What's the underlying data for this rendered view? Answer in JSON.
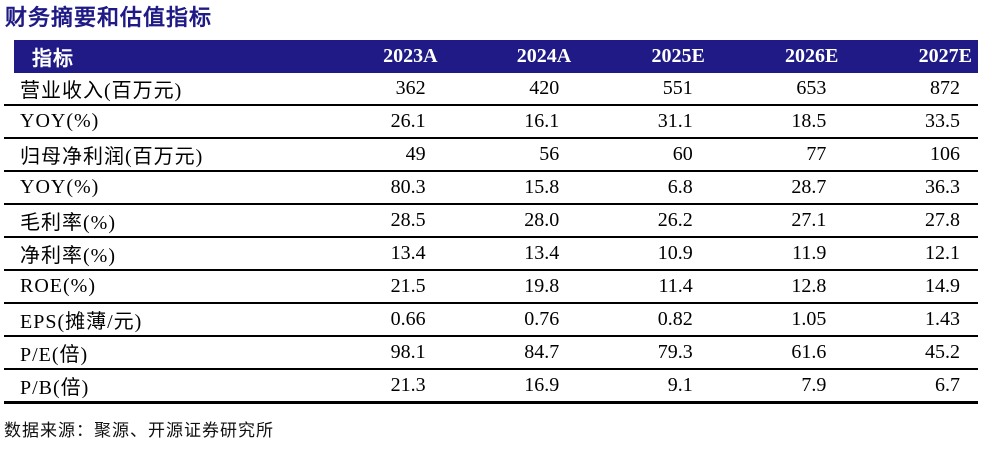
{
  "title": "财务摘要和估值指标",
  "colors": {
    "navy": "#1f1a85",
    "line": "#000000",
    "header_text": "#ffffff",
    "body_text": "#000000"
  },
  "table": {
    "header": {
      "metric_label": "指标",
      "years": [
        "2023A",
        "2024A",
        "2025E",
        "2026E",
        "2027E"
      ]
    },
    "rows": [
      {
        "label": "营业收入(百万元)",
        "values": [
          "362",
          "420",
          "551",
          "653",
          "872"
        ]
      },
      {
        "label": "YOY(%)",
        "values": [
          "26.1",
          "16.1",
          "31.1",
          "18.5",
          "33.5"
        ]
      },
      {
        "label": "归母净利润(百万元)",
        "values": [
          "49",
          "56",
          "60",
          "77",
          "106"
        ]
      },
      {
        "label": "YOY(%)",
        "values": [
          "80.3",
          "15.8",
          "6.8",
          "28.7",
          "36.3"
        ]
      },
      {
        "label": "毛利率(%)",
        "values": [
          "28.5",
          "28.0",
          "26.2",
          "27.1",
          "27.8"
        ]
      },
      {
        "label": "净利率(%)",
        "values": [
          "13.4",
          "13.4",
          "10.9",
          "11.9",
          "12.1"
        ]
      },
      {
        "label": "ROE(%)",
        "values": [
          "21.5",
          "19.8",
          "11.4",
          "12.8",
          "14.9"
        ]
      },
      {
        "label": "EPS(摊薄/元)",
        "values": [
          "0.66",
          "0.76",
          "0.82",
          "1.05",
          "1.43"
        ]
      },
      {
        "label": "P/E(倍)",
        "values": [
          "98.1",
          "84.7",
          "79.3",
          "61.6",
          "45.2"
        ]
      },
      {
        "label": "P/B(倍)",
        "values": [
          "21.3",
          "16.9",
          "9.1",
          "7.9",
          "6.7"
        ]
      }
    ]
  },
  "footer": {
    "source_text": "数据来源：聚源、开源证券研究所"
  }
}
